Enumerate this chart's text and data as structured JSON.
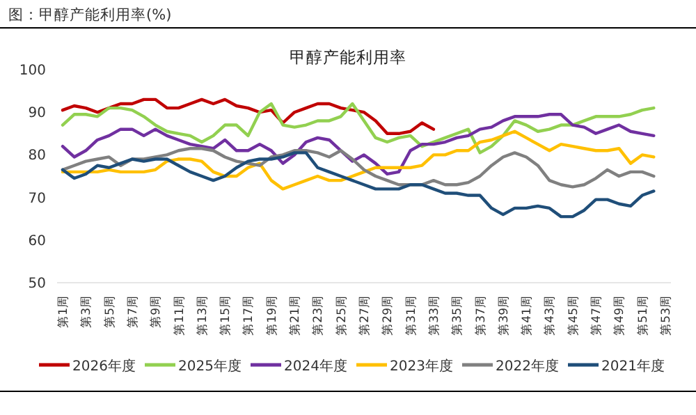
{
  "chart_data": {
    "type": "line",
    "title": "甲醇产能利用率",
    "annotations": [
      "图：甲醇产能利用率(%)"
    ],
    "categories": [
      "第1周",
      null,
      "第3周",
      null,
      "第5周",
      null,
      "第7周",
      null,
      "第9周",
      null,
      "第11周",
      null,
      "第13周",
      null,
      "第15周",
      null,
      "第17周",
      null,
      "第19周",
      null,
      "第21周",
      null,
      "第23周",
      null,
      "第25周",
      null,
      "第27周",
      null,
      "第29周",
      null,
      "第31周",
      null,
      "第33周",
      null,
      "第35周",
      null,
      "第37周",
      null,
      "第39周",
      null,
      "第41周",
      null,
      "第43周",
      null,
      "第45周",
      null,
      "第47周",
      null,
      "第49周",
      null,
      "第51周",
      null,
      "第53周"
    ],
    "series": [
      {
        "name": "2026年度",
        "color": "#c00000",
        "values": [
          90.5,
          91.5,
          91,
          90,
          91,
          92,
          92,
          93,
          93,
          91,
          91,
          92,
          93,
          92,
          93,
          91.5,
          91,
          90,
          90.5,
          87.5,
          90,
          91,
          92,
          92,
          91,
          90.5,
          90,
          88,
          85,
          85,
          85.5,
          87.5,
          86,
          null,
          null,
          null,
          null,
          null,
          null,
          null,
          null,
          null,
          null,
          null,
          null,
          null,
          null,
          null,
          null,
          null,
          null,
          null,
          null
        ]
      },
      {
        "name": "2025年度",
        "color": "#92d050",
        "values": [
          87,
          89.5,
          89.5,
          89,
          91,
          91,
          90.5,
          89,
          87,
          85.5,
          85,
          84.5,
          83,
          84.5,
          87,
          87,
          84.5,
          90,
          92,
          87,
          86.5,
          87,
          88,
          88,
          89,
          92,
          88,
          84,
          83,
          84,
          84.5,
          82,
          83,
          84,
          85,
          86,
          80.5,
          82,
          84.5,
          88,
          87,
          85.5,
          86,
          87,
          87,
          88,
          89,
          89,
          89,
          89.5,
          90.5,
          91,
          null
        ]
      },
      {
        "name": "2024年度",
        "color": "#7030a0",
        "values": [
          82,
          79.5,
          81,
          83.5,
          84.5,
          86,
          86,
          84.5,
          86,
          84.5,
          83.5,
          82.5,
          82,
          81.5,
          83.5,
          81,
          81,
          82.5,
          81,
          78,
          80,
          83,
          84,
          83.5,
          81,
          78.5,
          80,
          78,
          75.5,
          76,
          81,
          82.5,
          82.5,
          83,
          84,
          84.5,
          86,
          86.5,
          88,
          89,
          89,
          89,
          89.5,
          89.5,
          87,
          86.5,
          85,
          86,
          87,
          85.5,
          85,
          84.5,
          null
        ]
      },
      {
        "name": "2023年度",
        "color": "#ffc000",
        "values": [
          76,
          76,
          76,
          76,
          76.5,
          76,
          76,
          76,
          76.5,
          78.5,
          79,
          79,
          78.5,
          76,
          75,
          75,
          77,
          78,
          74,
          72,
          73,
          74,
          75,
          74,
          74,
          75,
          76,
          77,
          77,
          77,
          77,
          77.5,
          80,
          80,
          81,
          81,
          83,
          83.5,
          84.5,
          85.5,
          84,
          82.5,
          81,
          82.5,
          82,
          81.5,
          81,
          81,
          81.5,
          78,
          80,
          79.5,
          null
        ]
      },
      {
        "name": "2022年度",
        "color": "#808080",
        "values": [
          76.5,
          77.5,
          78.5,
          79,
          79.5,
          77.5,
          79,
          79,
          79.5,
          80,
          81,
          81.5,
          81.5,
          81,
          79.5,
          78.5,
          78,
          77.5,
          79.5,
          80,
          81,
          81,
          80.5,
          79.5,
          81,
          79,
          76.5,
          75,
          74,
          73,
          73,
          73,
          74,
          73,
          73,
          73.5,
          75,
          77.5,
          79.5,
          80.5,
          79.5,
          77.5,
          74,
          73,
          72.5,
          73,
          74.5,
          76.5,
          75,
          76,
          76,
          75,
          null
        ]
      },
      {
        "name": "2021年度",
        "color": "#1f4e79",
        "values": [
          76.5,
          74.5,
          75.5,
          77.5,
          77,
          78,
          79,
          78.5,
          79,
          79,
          77.5,
          76,
          75,
          74,
          75,
          77,
          78.5,
          79,
          79,
          79.5,
          80.5,
          80.5,
          77,
          76,
          75,
          74,
          73,
          72,
          72,
          72,
          73,
          73,
          72,
          71,
          71,
          70.5,
          70.5,
          67.5,
          66,
          67.5,
          67.5,
          68,
          67.5,
          65.5,
          65.5,
          67,
          69.5,
          69.5,
          68.5,
          68,
          70.5,
          71.5,
          null
        ]
      }
    ],
    "ylim": [
      50,
      100
    ],
    "yticks": [
      50,
      60,
      70,
      80,
      90,
      100
    ],
    "legend": "bottom"
  }
}
